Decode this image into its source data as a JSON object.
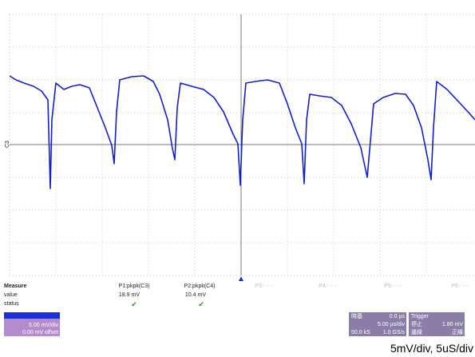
{
  "scope": {
    "channel_label": "C3"
  },
  "measure": {
    "title": "Measure",
    "row_labels": [
      "value",
      "status"
    ],
    "params": [
      {
        "name": "P1:pkpk(C3)",
        "value": "18.9 mV",
        "status": "✔"
      },
      {
        "name": "P2:pkpk(C4)",
        "value": "10.4 mV",
        "status": "✔"
      },
      {
        "name": "P3:- - -"
      },
      {
        "name": "P4:- - -"
      },
      {
        "name": "P5:- - -"
      },
      {
        "name": "P6:- - -"
      }
    ]
  },
  "channel_box": {
    "scale": "5.00 mV/div",
    "offset": "0.00 mV offset"
  },
  "timebase_box": {
    "title": "時基",
    "delay": "0.0 µs",
    "scale": "5.00 µs/div",
    "points": "50.0 kS",
    "rate": "1.0 GS/s"
  },
  "trigger_box": {
    "title": "Trigger",
    "mode": "停止",
    "level": "1.80 mV",
    "type": "邊緣",
    "slope": "正緣"
  },
  "caption": "5mV/div, 5uS/div"
}
